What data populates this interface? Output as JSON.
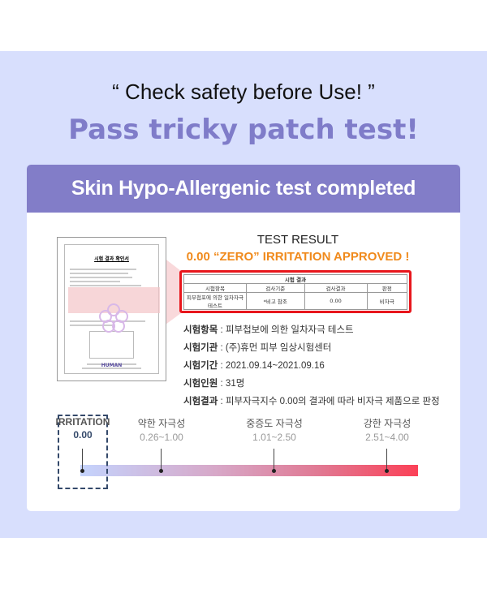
{
  "quote": "“ Check safety before Use! ”",
  "headline": "Pass tricky patch test!",
  "card": {
    "title": "Skin Hypo-Allergenic test completed",
    "certificate": {
      "title": "시험 결과 확인서",
      "logo": "HUMAN"
    },
    "result_title": "TEST RESULT",
    "result_subtitle": "0.00 “ZERO” IRRITATION APPROVED !",
    "highlight_color": "#e8161c",
    "result_table": {
      "caption": "시험 결과",
      "headers": [
        "시험항목",
        "검사기준",
        "검사결과",
        "판정"
      ],
      "row": [
        "피부첩포에 의한 일차자극 테스트",
        "*비고 참조",
        "0.00",
        "비자극"
      ]
    },
    "details": [
      {
        "label": "시험항목",
        "value": "피부첩보에 의한 일차자극 테스트"
      },
      {
        "label": "시험기관",
        "value": "(주)휴먼 피부 임상시험센터"
      },
      {
        "label": "시험기간",
        "value": "2021.09.14~2021.09.16"
      },
      {
        "label": "시험인원",
        "value": "31명"
      },
      {
        "label": "시험결과",
        "value": "피부자극지수 0.00의 결과에 따라 비자극 제품으로 판정"
      }
    ]
  },
  "scale": {
    "range": [
      0,
      4
    ],
    "gradient_colors": [
      "#c4d3fd",
      "#fb4157"
    ],
    "markers": [
      {
        "name": "IRRITATION",
        "range": "0.00",
        "value": 0.0,
        "highlighted": true
      },
      {
        "name": "약한 자극성",
        "range": "0.26~1.00",
        "value": 0.26
      },
      {
        "name": "중증도 자극성",
        "range": "1.01~2.50",
        "value": 1.01
      },
      {
        "name": "강한 자극성",
        "range": "2.51~4.00",
        "value": 2.51
      }
    ]
  }
}
